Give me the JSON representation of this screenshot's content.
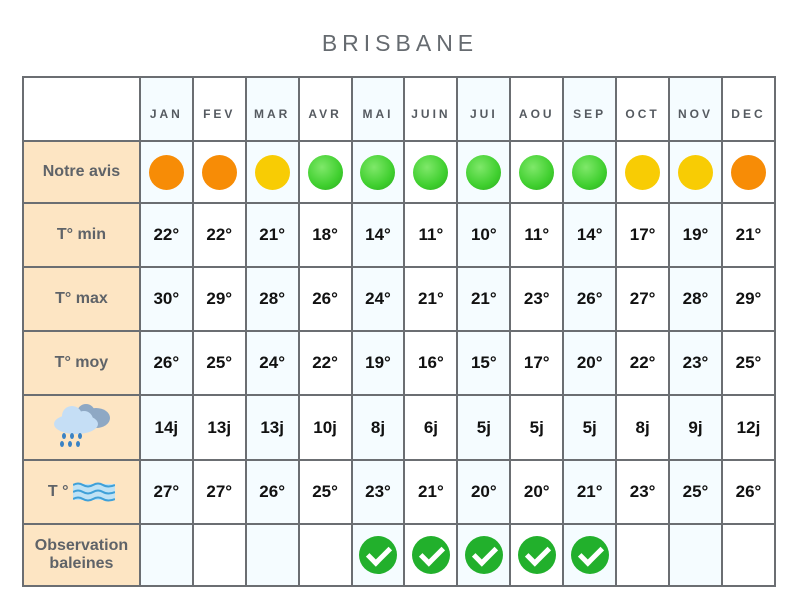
{
  "title": "BRISBANE",
  "months": [
    "JAN",
    "FEV",
    "MAR",
    "AVR",
    "MAI",
    "JUIN",
    "JUI",
    "AOU",
    "SEP",
    "OCT",
    "NOV",
    "DEC"
  ],
  "colors": {
    "orange": "#f78c06",
    "yellow": "#f8cc04",
    "green": "#3fcf2e",
    "check": "#22b02c",
    "label_bg": "#fde5c3",
    "alt_col": "#f5fcff"
  },
  "rows": {
    "avis": {
      "label": "Notre avis",
      "values": [
        "orange",
        "orange",
        "yellow",
        "green",
        "green",
        "green",
        "green",
        "green",
        "green",
        "yellow",
        "yellow",
        "orange"
      ]
    },
    "tmin": {
      "label": "T° min",
      "values": [
        "22°",
        "22°",
        "21°",
        "18°",
        "14°",
        "11°",
        "10°",
        "11°",
        "14°",
        "17°",
        "19°",
        "21°"
      ]
    },
    "tmax": {
      "label": "T° max",
      "values": [
        "30°",
        "29°",
        "28°",
        "26°",
        "24°",
        "21°",
        "21°",
        "23°",
        "26°",
        "27°",
        "28°",
        "29°"
      ]
    },
    "tmoy": {
      "label": "T° moy",
      "values": [
        "26°",
        "25°",
        "24°",
        "22°",
        "19°",
        "16°",
        "15°",
        "17°",
        "20°",
        "22°",
        "23°",
        "25°"
      ]
    },
    "rain": {
      "icon": "rain-cloud-icon",
      "values": [
        "14j",
        "13j",
        "13j",
        "10j",
        "8j",
        "6j",
        "5j",
        "5j",
        "5j",
        "8j",
        "9j",
        "12j"
      ]
    },
    "sea": {
      "label": "T °",
      "icon": "water-waves-icon",
      "values": [
        "27°",
        "27°",
        "26°",
        "25°",
        "23°",
        "21°",
        "20°",
        "20°",
        "21°",
        "23°",
        "25°",
        "26°"
      ]
    },
    "whales": {
      "label_1": "Observation",
      "label_2": "baleines",
      "values": [
        false,
        false,
        false,
        false,
        true,
        true,
        true,
        true,
        true,
        false,
        false,
        false
      ]
    }
  }
}
